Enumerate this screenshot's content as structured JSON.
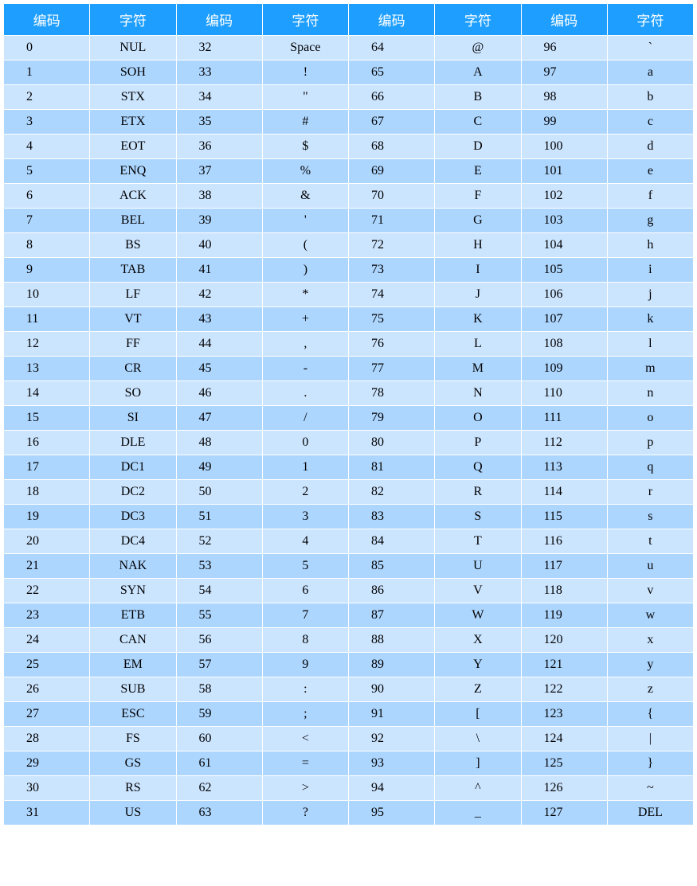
{
  "table": {
    "type": "table",
    "header_bg_color": "#1e9fff",
    "header_text_color": "#ffffff",
    "row_even_bg": "#cce5ff",
    "row_odd_bg": "#add6ff",
    "border_color": "#ffffff",
    "font_family": "Times New Roman, SimSun, serif",
    "header_fontsize": 17,
    "cell_fontsize": 16,
    "columns": [
      "编码",
      "字符",
      "编码",
      "字符",
      "编码",
      "字符",
      "编码",
      "字符"
    ],
    "rows": [
      [
        "0",
        "NUL",
        "32",
        "Space",
        "64",
        "@",
        "96",
        "`"
      ],
      [
        "1",
        "SOH",
        "33",
        "!",
        "65",
        "A",
        "97",
        "a"
      ],
      [
        "2",
        "STX",
        "34",
        "\"",
        "66",
        "B",
        "98",
        "b"
      ],
      [
        "3",
        "ETX",
        "35",
        "#",
        "67",
        "C",
        "99",
        "c"
      ],
      [
        "4",
        "EOT",
        "36",
        "$",
        "68",
        "D",
        "100",
        "d"
      ],
      [
        "5",
        "ENQ",
        "37",
        "%",
        "69",
        "E",
        "101",
        "e"
      ],
      [
        "6",
        "ACK",
        "38",
        "&",
        "70",
        "F",
        "102",
        "f"
      ],
      [
        "7",
        "BEL",
        "39",
        "'",
        "71",
        "G",
        "103",
        "g"
      ],
      [
        "8",
        "BS",
        "40",
        "(",
        "72",
        "H",
        "104",
        "h"
      ],
      [
        "9",
        "TAB",
        "41",
        ")",
        "73",
        "I",
        "105",
        "i"
      ],
      [
        "10",
        "LF",
        "42",
        "*",
        "74",
        "J",
        "106",
        "j"
      ],
      [
        "11",
        "VT",
        "43",
        "+",
        "75",
        "K",
        "107",
        "k"
      ],
      [
        "12",
        "FF",
        "44",
        ",",
        "76",
        "L",
        "108",
        "l"
      ],
      [
        "13",
        "CR",
        "45",
        "-",
        "77",
        "M",
        "109",
        "m"
      ],
      [
        "14",
        "SO",
        "46",
        ".",
        "78",
        "N",
        "110",
        "n"
      ],
      [
        "15",
        "SI",
        "47",
        "/",
        "79",
        "O",
        "111",
        "o"
      ],
      [
        "16",
        "DLE",
        "48",
        "0",
        "80",
        "P",
        "112",
        "p"
      ],
      [
        "17",
        "DC1",
        "49",
        "1",
        "81",
        "Q",
        "113",
        "q"
      ],
      [
        "18",
        "DC2",
        "50",
        "2",
        "82",
        "R",
        "114",
        "r"
      ],
      [
        "19",
        "DC3",
        "51",
        "3",
        "83",
        "S",
        "115",
        "s"
      ],
      [
        "20",
        "DC4",
        "52",
        "4",
        "84",
        "T",
        "116",
        "t"
      ],
      [
        "21",
        "NAK",
        "53",
        "5",
        "85",
        "U",
        "117",
        "u"
      ],
      [
        "22",
        "SYN",
        "54",
        "6",
        "86",
        "V",
        "118",
        "v"
      ],
      [
        "23",
        "ETB",
        "55",
        "7",
        "87",
        "W",
        "119",
        "w"
      ],
      [
        "24",
        "CAN",
        "56",
        "8",
        "88",
        "X",
        "120",
        "x"
      ],
      [
        "25",
        "EM",
        "57",
        "9",
        "89",
        "Y",
        "121",
        "y"
      ],
      [
        "26",
        "SUB",
        "58",
        ":",
        "90",
        "Z",
        "122",
        "z"
      ],
      [
        "27",
        "ESC",
        "59",
        ";",
        "91",
        "[",
        "123",
        "{"
      ],
      [
        "28",
        "FS",
        "60",
        "<",
        "92",
        "\\",
        "124",
        "|"
      ],
      [
        "29",
        "GS",
        "61",
        "=",
        "93",
        "]",
        "125",
        "}"
      ],
      [
        "30",
        "RS",
        "62",
        ">",
        "94",
        "^",
        "126",
        "~"
      ],
      [
        "31",
        "US",
        "63",
        "?",
        "95",
        "_",
        "127",
        "DEL"
      ]
    ]
  }
}
